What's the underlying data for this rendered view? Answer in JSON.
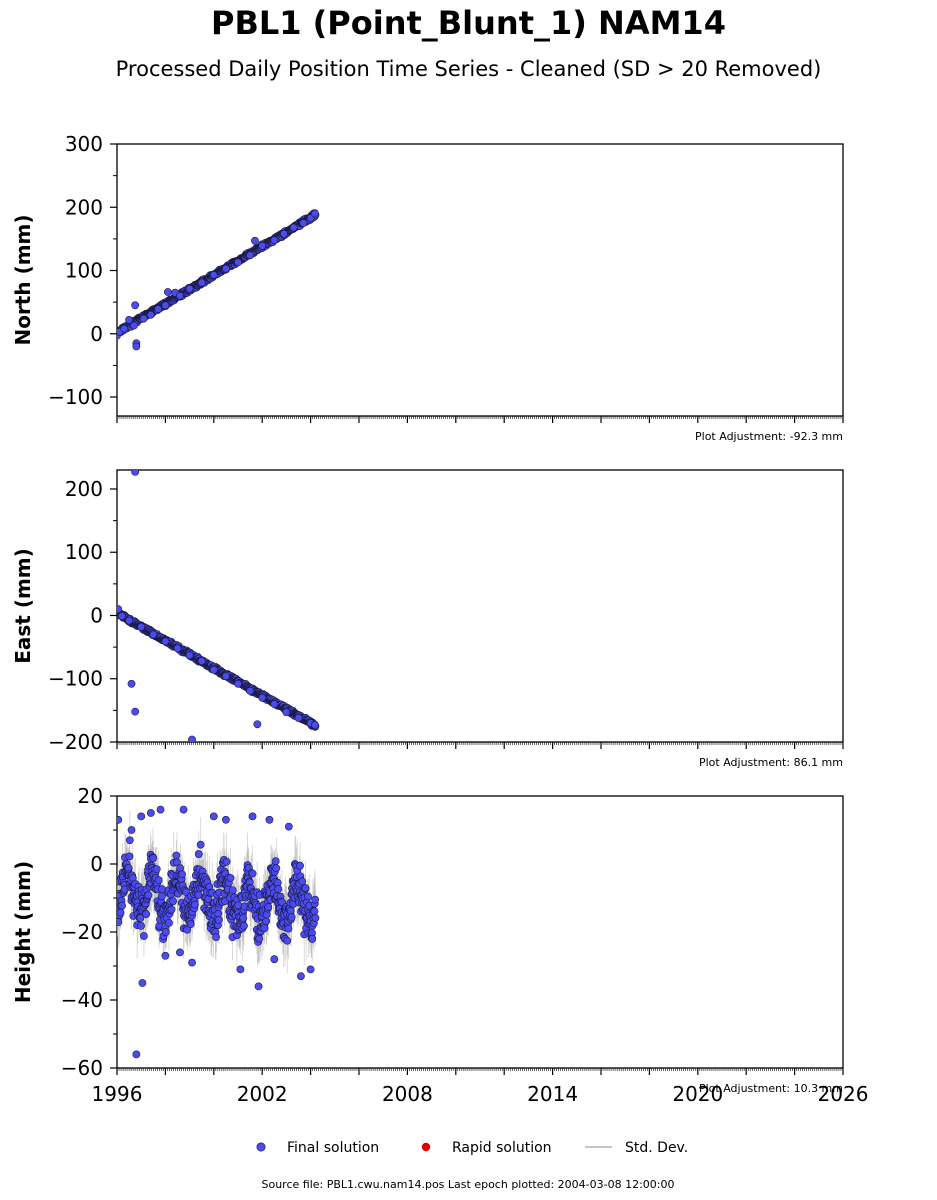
{
  "header": {
    "title": "PBL1 (Point_Blunt_1) NAM14",
    "subtitle": "Processed Daily Position Time Series - Cleaned (SD > 20 Removed)"
  },
  "legend": {
    "final": "Final solution",
    "rapid": "Rapid solution",
    "std": "Std. Dev."
  },
  "source_text": "Source file: PBL1.cwu.nam14.pos  Last epoch plotted: 2004-03-08 12:00:00",
  "colors": {
    "final_fill": "#4b4bf0",
    "final_edge": "#1a1a40",
    "rapid": "#e00000",
    "std": "#b4b4b4"
  },
  "chart_data": [
    {
      "type": "scatter",
      "panel": "north",
      "ylabel": "North (mm)",
      "adjustment": "Plot Adjustment: -92.3 mm",
      "xlim": [
        1996,
        2026
      ],
      "ylim": [
        -130,
        300
      ],
      "yticks": [
        -100,
        0,
        100,
        200,
        300
      ],
      "xticks": [
        1996,
        2002,
        2008,
        2014,
        2020,
        2026
      ],
      "trend": {
        "x0": 1996.0,
        "y0": 2,
        "x1": 2004.2,
        "y1": 188,
        "scatter": 3
      },
      "points": [
        {
          "x": 1996.0,
          "y": -3
        },
        {
          "x": 1996.1,
          "y": 3
        },
        {
          "x": 1996.3,
          "y": 8
        },
        {
          "x": 1996.5,
          "y": 22
        },
        {
          "x": 1996.7,
          "y": 13
        },
        {
          "x": 1996.8,
          "y": -15
        },
        {
          "x": 1996.75,
          "y": 45
        },
        {
          "x": 1996.8,
          "y": -20
        },
        {
          "x": 1997.1,
          "y": 24
        },
        {
          "x": 1997.4,
          "y": 30
        },
        {
          "x": 1997.7,
          "y": 39
        },
        {
          "x": 1998.0,
          "y": 45
        },
        {
          "x": 1998.1,
          "y": 66
        },
        {
          "x": 1998.4,
          "y": 65
        },
        {
          "x": 1998.6,
          "y": 60
        },
        {
          "x": 1999.0,
          "y": 71
        },
        {
          "x": 1999.5,
          "y": 81
        },
        {
          "x": 2000.0,
          "y": 93
        },
        {
          "x": 2000.5,
          "y": 103
        },
        {
          "x": 2001.0,
          "y": 113
        },
        {
          "x": 2001.5,
          "y": 124
        },
        {
          "x": 2001.7,
          "y": 147
        },
        {
          "x": 2002.0,
          "y": 139
        },
        {
          "x": 2002.5,
          "y": 148
        },
        {
          "x": 2002.9,
          "y": 158
        },
        {
          "x": 2003.3,
          "y": 168
        },
        {
          "x": 2003.7,
          "y": 175
        },
        {
          "x": 2004.0,
          "y": 183
        },
        {
          "x": 2004.18,
          "y": 190
        }
      ]
    },
    {
      "type": "scatter",
      "panel": "east",
      "ylabel": "East (mm)",
      "adjustment": "Plot Adjustment: 86.1 mm",
      "xlim": [
        1996,
        2026
      ],
      "ylim": [
        -200,
        230
      ],
      "yticks": [
        -200,
        -100,
        0,
        100,
        200
      ],
      "xticks": [
        1996,
        2002,
        2008,
        2014,
        2020,
        2026
      ],
      "trend": {
        "x0": 1996.0,
        "y0": 4,
        "x1": 2004.2,
        "y1": -174,
        "scatter": 3
      },
      "points": [
        {
          "x": 1996.05,
          "y": 10
        },
        {
          "x": 1996.2,
          "y": -1
        },
        {
          "x": 1996.5,
          "y": -8
        },
        {
          "x": 1996.6,
          "y": -108
        },
        {
          "x": 1996.75,
          "y": -152
        },
        {
          "x": 1996.75,
          "y": 227
        },
        {
          "x": 1997.0,
          "y": -18
        },
        {
          "x": 1997.5,
          "y": -30
        },
        {
          "x": 1998.0,
          "y": -41
        },
        {
          "x": 1998.5,
          "y": -52
        },
        {
          "x": 1999.0,
          "y": -63
        },
        {
          "x": 1999.1,
          "y": -196
        },
        {
          "x": 1999.5,
          "y": -72
        },
        {
          "x": 2000.0,
          "y": -86
        },
        {
          "x": 2000.5,
          "y": -96
        },
        {
          "x": 2001.0,
          "y": -108
        },
        {
          "x": 2001.5,
          "y": -119
        },
        {
          "x": 2001.8,
          "y": -172
        },
        {
          "x": 2002.0,
          "y": -130
        },
        {
          "x": 2002.5,
          "y": -140
        },
        {
          "x": 2003.0,
          "y": -153
        },
        {
          "x": 2003.5,
          "y": -162
        },
        {
          "x": 2004.0,
          "y": -170
        },
        {
          "x": 2004.18,
          "y": -173
        }
      ]
    },
    {
      "type": "scatter",
      "panel": "height",
      "ylabel": "Height (mm)",
      "adjustment": "Plot Adjustment: 10.3 mm",
      "xlim": [
        1996,
        2026
      ],
      "ylim": [
        -60,
        20
      ],
      "yticks": [
        -60,
        -40,
        -20,
        0,
        20
      ],
      "xticks": [
        1996,
        2002,
        2008,
        2014,
        2020,
        2026
      ],
      "trend": {
        "x0": 1996.0,
        "y0": -8,
        "x1": 2004.2,
        "y1": -12,
        "scatter": 7,
        "annual_amplitude": 6
      },
      "points": [
        {
          "x": 1996.05,
          "y": 13
        },
        {
          "x": 1996.6,
          "y": 10
        },
        {
          "x": 1996.8,
          "y": -56
        },
        {
          "x": 1997.0,
          "y": 14
        },
        {
          "x": 1997.05,
          "y": -35
        },
        {
          "x": 1997.4,
          "y": 15
        },
        {
          "x": 1997.8,
          "y": 16
        },
        {
          "x": 1998.0,
          "y": -27
        },
        {
          "x": 1998.6,
          "y": -26
        },
        {
          "x": 1998.75,
          "y": 16
        },
        {
          "x": 1999.1,
          "y": -29
        },
        {
          "x": 2000.0,
          "y": 14
        },
        {
          "x": 2000.5,
          "y": 13
        },
        {
          "x": 2001.1,
          "y": -31
        },
        {
          "x": 2001.6,
          "y": 14
        },
        {
          "x": 2001.85,
          "y": -36
        },
        {
          "x": 2002.3,
          "y": 13
        },
        {
          "x": 2002.5,
          "y": -28
        },
        {
          "x": 2003.1,
          "y": 11
        },
        {
          "x": 2003.6,
          "y": -33
        },
        {
          "x": 2004.0,
          "y": -31
        }
      ]
    }
  ]
}
